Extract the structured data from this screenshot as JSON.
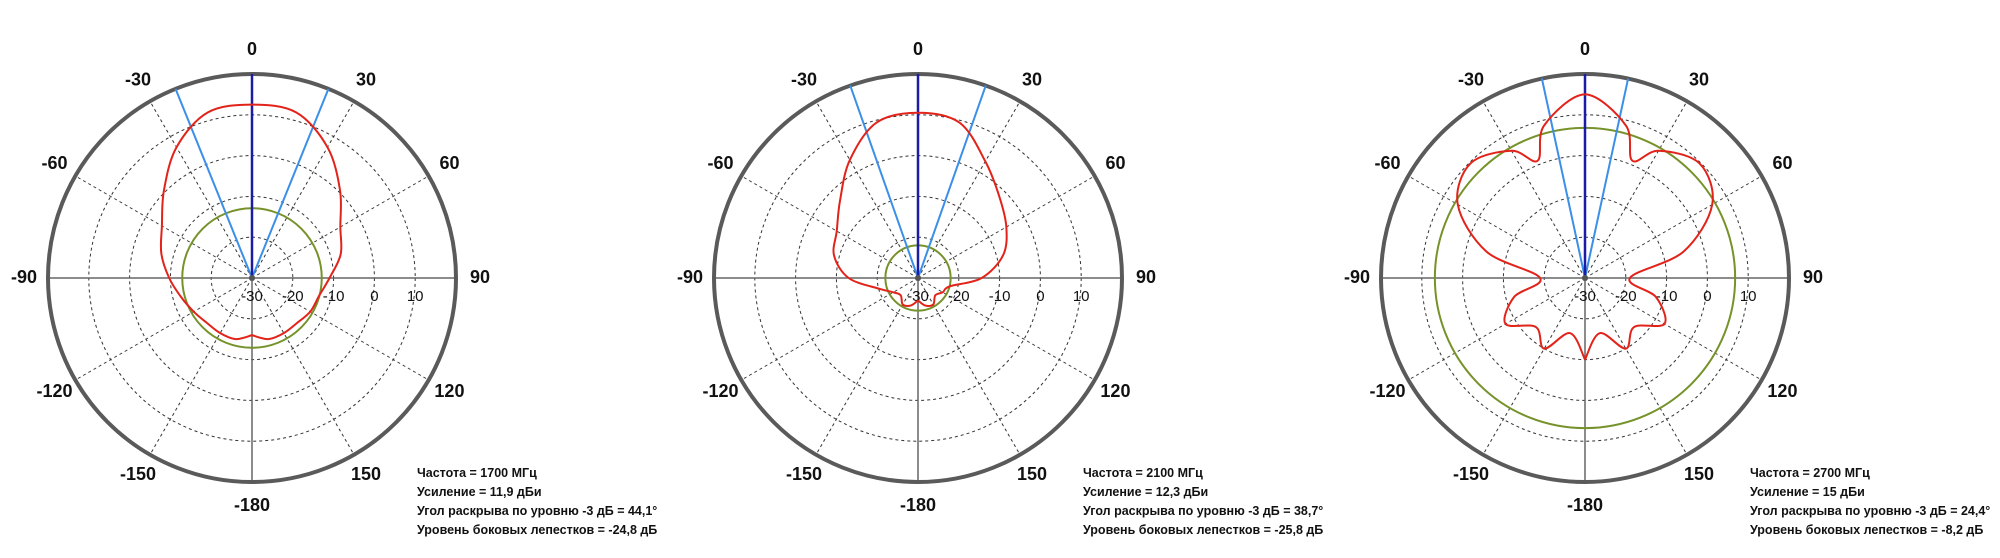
{
  "chart_data": [
    {
      "type": "polar",
      "color": "#e2231a",
      "theta": [
        -180,
        -165,
        -150,
        -135,
        -120,
        -105,
        -90,
        -75,
        -60,
        -45,
        -30,
        -15,
        0,
        15,
        30,
        45,
        60,
        75,
        90,
        105,
        120,
        135,
        150,
        165,
        180
      ],
      "r": [
        -16,
        -14.5,
        -14.4,
        -14.4,
        -13.5,
        -12,
        -9.7,
        -7,
        -4.5,
        0.5,
        7,
        12,
        12.5,
        12,
        7,
        0.5,
        -5,
        -7.5,
        -11,
        -13,
        -13.5,
        -14.4,
        -14.4,
        -14.5,
        -16
      ],
      "rlim": [
        -30,
        20
      ],
      "rticks": [
        -30,
        -20,
        -10,
        0,
        10
      ],
      "angle_ticks": [
        0,
        30,
        60,
        90,
        120,
        150,
        -180,
        -150,
        -120,
        -90,
        -60,
        -30
      ],
      "reference_level": -12.9,
      "reference_color": "#76922a",
      "beam_edges": [
        -22,
        22
      ],
      "beam_color": "#3b8fe8",
      "notes": [
        "Частота = 1700 МГц",
        "Усиление = 11,9 дБи",
        "Угол раскрыва по уровню -3 дБ = 44,1°",
        "Уровень боковых лепестков = -24,8 дБ"
      ]
    },
    {
      "type": "polar",
      "color": "#e2231a",
      "theta": [
        -180,
        -165,
        -150,
        -135,
        -120,
        -105,
        -90,
        -75,
        -60,
        -45,
        -30,
        -15,
        0,
        15,
        30,
        45,
        60,
        75,
        90,
        105,
        120,
        135,
        150,
        165,
        180
      ],
      "r": [
        -24.5,
        -23,
        -22.5,
        -24,
        -23,
        -20,
        -13,
        -8.7,
        -7,
        -3,
        3.4,
        9.4,
        10.5,
        9.4,
        3,
        -1.8,
        -5,
        -8.4,
        -14.4,
        -22,
        -23,
        -24,
        -22.5,
        -23,
        -24.5
      ],
      "rlim": [
        -30,
        20
      ],
      "rticks": [
        -30,
        -20,
        -10,
        0,
        10
      ],
      "angle_ticks": [
        0,
        30,
        60,
        90,
        120,
        150,
        -180,
        -150,
        -120,
        -90,
        -60,
        -30
      ],
      "reference_level": -22,
      "reference_color": "#76922a",
      "beam_edges": [
        -19.4,
        19.4
      ],
      "beam_color": "#3b8fe8",
      "notes": [
        "Частота = 2100 МГц",
        "Усиление = 12,3 дБи",
        "Угол раскрыва по уровню -3 дБ = 38,7°",
        "Уровень боковых лепестков = -25,8 дБ"
      ]
    },
    {
      "type": "polar",
      "color": "#e2231a",
      "theta": [
        -180,
        -165,
        -150,
        -135,
        -120,
        -105,
        -90,
        -75,
        -60,
        -45,
        -30,
        -22,
        -15,
        0,
        15,
        22,
        30,
        45,
        60,
        75,
        90,
        105,
        120,
        135,
        150,
        165,
        180
      ],
      "r": [
        -10,
        -16,
        -10,
        -13,
        -7.5,
        -12,
        -19,
        -5,
        6,
        9.7,
        6,
        1,
        8.7,
        15,
        8.7,
        1,
        6,
        9.7,
        6,
        -5,
        -19,
        -12,
        -7.5,
        -13,
        -10,
        -16,
        -10
      ],
      "rlim": [
        -30,
        20
      ],
      "rticks": [
        -30,
        -20,
        -10,
        0,
        10
      ],
      "angle_ticks": [
        0,
        30,
        60,
        90,
        120,
        150,
        -180,
        -150,
        -120,
        -90,
        -60,
        -30
      ],
      "reference_level": 6.8,
      "reference_color": "#76922a",
      "beam_edges": [
        -12.2,
        12.2
      ],
      "beam_color": "#3b8fe8",
      "notes": [
        "Частота = 2700 МГц",
        "Усиление = 15 дБи",
        "Угол раскрыва по уровню -3 дБ = 24,4°",
        "Уровень боковых лепестков = -8,2 дБ"
      ]
    }
  ]
}
